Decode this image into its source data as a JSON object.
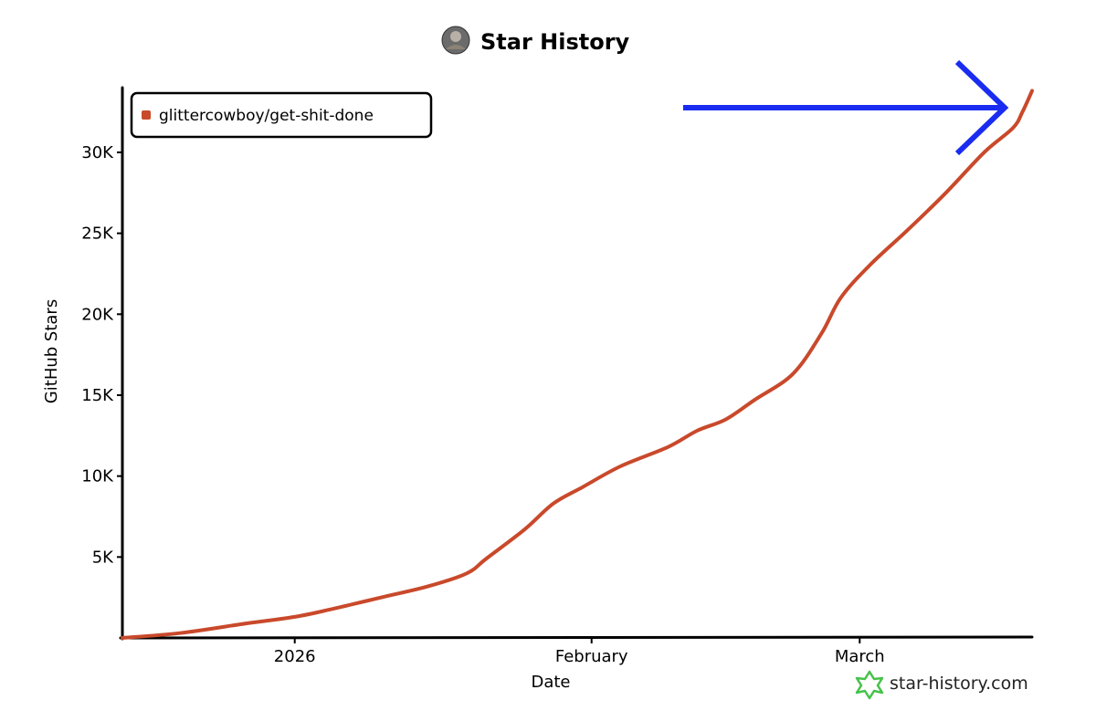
{
  "header": {
    "title": "Star History",
    "avatar_icon": "avatar-icon"
  },
  "watermark": {
    "text": "star-history.com",
    "icon": "star-history-logo-icon",
    "color": "#47c24a"
  },
  "annotation": {
    "arrow_color": "#1a2cf0",
    "arrow_icon": "right-arrow-icon"
  },
  "chart_data": {
    "type": "line",
    "title": "Star History",
    "xlabel": "Date",
    "ylabel": "GitHub Stars",
    "x_tick_labels": [
      {
        "label": "2026",
        "date": "2026-01-01"
      },
      {
        "label": "February",
        "date": "2026-02-01"
      },
      {
        "label": "March",
        "date": "2026-03-01"
      }
    ],
    "y_tick_labels": [
      {
        "label": "5K",
        "value": 5000
      },
      {
        "label": "10K",
        "value": 10000
      },
      {
        "label": "15K",
        "value": 15000
      },
      {
        "label": "20K",
        "value": 20000
      },
      {
        "label": "25K",
        "value": 25000
      },
      {
        "label": "30K",
        "value": 30000
      }
    ],
    "xlim": [
      "2025-12-14",
      "2026-03-19"
    ],
    "ylim": [
      0,
      34000
    ],
    "grid": false,
    "legend_position": "top-left",
    "series": [
      {
        "name": "glittercowboy/get-shit-done",
        "color": "#c9492b",
        "points": [
          {
            "date": "2025-12-14",
            "value": 0
          },
          {
            "date": "2025-12-20",
            "value": 300
          },
          {
            "date": "2025-12-27",
            "value": 900
          },
          {
            "date": "2026-01-01",
            "value": 1300
          },
          {
            "date": "2026-01-05",
            "value": 1800
          },
          {
            "date": "2026-01-10",
            "value": 2500
          },
          {
            "date": "2026-01-15",
            "value": 3200
          },
          {
            "date": "2026-01-19",
            "value": 4000
          },
          {
            "date": "2026-01-21",
            "value": 4900
          },
          {
            "date": "2026-01-25",
            "value": 6700
          },
          {
            "date": "2026-01-28",
            "value": 8300
          },
          {
            "date": "2026-01-31",
            "value": 9300
          },
          {
            "date": "2026-02-04",
            "value": 10600
          },
          {
            "date": "2026-02-09",
            "value": 11800
          },
          {
            "date": "2026-02-12",
            "value": 12800
          },
          {
            "date": "2026-02-15",
            "value": 13500
          },
          {
            "date": "2026-02-18",
            "value": 14700
          },
          {
            "date": "2026-02-22",
            "value": 16300
          },
          {
            "date": "2026-02-25",
            "value": 18800
          },
          {
            "date": "2026-02-27",
            "value": 21000
          },
          {
            "date": "2026-03-02",
            "value": 23000
          },
          {
            "date": "2026-03-06",
            "value": 25200
          },
          {
            "date": "2026-03-10",
            "value": 27500
          },
          {
            "date": "2026-03-14",
            "value": 30000
          },
          {
            "date": "2026-03-17",
            "value": 31500
          },
          {
            "date": "2026-03-18",
            "value": 32500
          },
          {
            "date": "2026-03-19",
            "value": 33800
          }
        ]
      }
    ]
  }
}
